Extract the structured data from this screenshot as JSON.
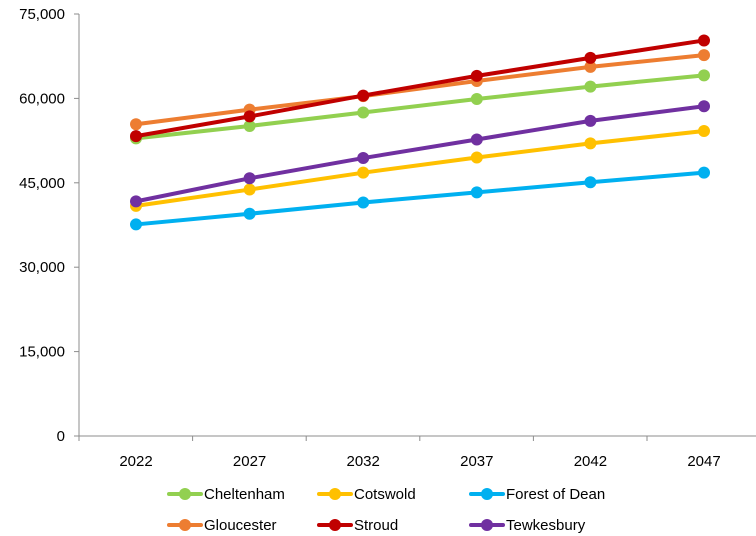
{
  "chart_data": {
    "type": "line",
    "title": "",
    "xlabel": "",
    "ylabel": "",
    "categories": [
      "2022",
      "2027",
      "2032",
      "2037",
      "2042",
      "2047"
    ],
    "ylim": [
      0,
      75000
    ],
    "yticks": [
      0,
      15000,
      30000,
      45000,
      60000,
      75000
    ],
    "ytick_labels": [
      "0",
      "15,000",
      "30,000",
      "45,000",
      "60,000",
      "75,000"
    ],
    "grid": false,
    "legend_position": "bottom",
    "series": [
      {
        "name": "Cheltenham",
        "color": "#92D050",
        "values": [
          52900,
          55100,
          57500,
          59900,
          62100,
          64100
        ]
      },
      {
        "name": "Cotswold",
        "color": "#FFC000",
        "values": [
          40900,
          43800,
          46800,
          49500,
          52000,
          54200
        ]
      },
      {
        "name": "Forest of Dean",
        "color": "#00B0F0",
        "values": [
          37600,
          39500,
          41500,
          43300,
          45100,
          46800
        ]
      },
      {
        "name": "Gloucester",
        "color": "#ED7D31",
        "values": [
          55400,
          58000,
          60400,
          63100,
          65600,
          67700
        ]
      },
      {
        "name": "Stroud",
        "color": "#C00000",
        "values": [
          53300,
          56800,
          60500,
          64000,
          67200,
          70300
        ]
      },
      {
        "name": "Tewkesbury",
        "color": "#7030A0",
        "values": [
          41700,
          45800,
          49400,
          52700,
          56000,
          58600
        ]
      }
    ]
  }
}
